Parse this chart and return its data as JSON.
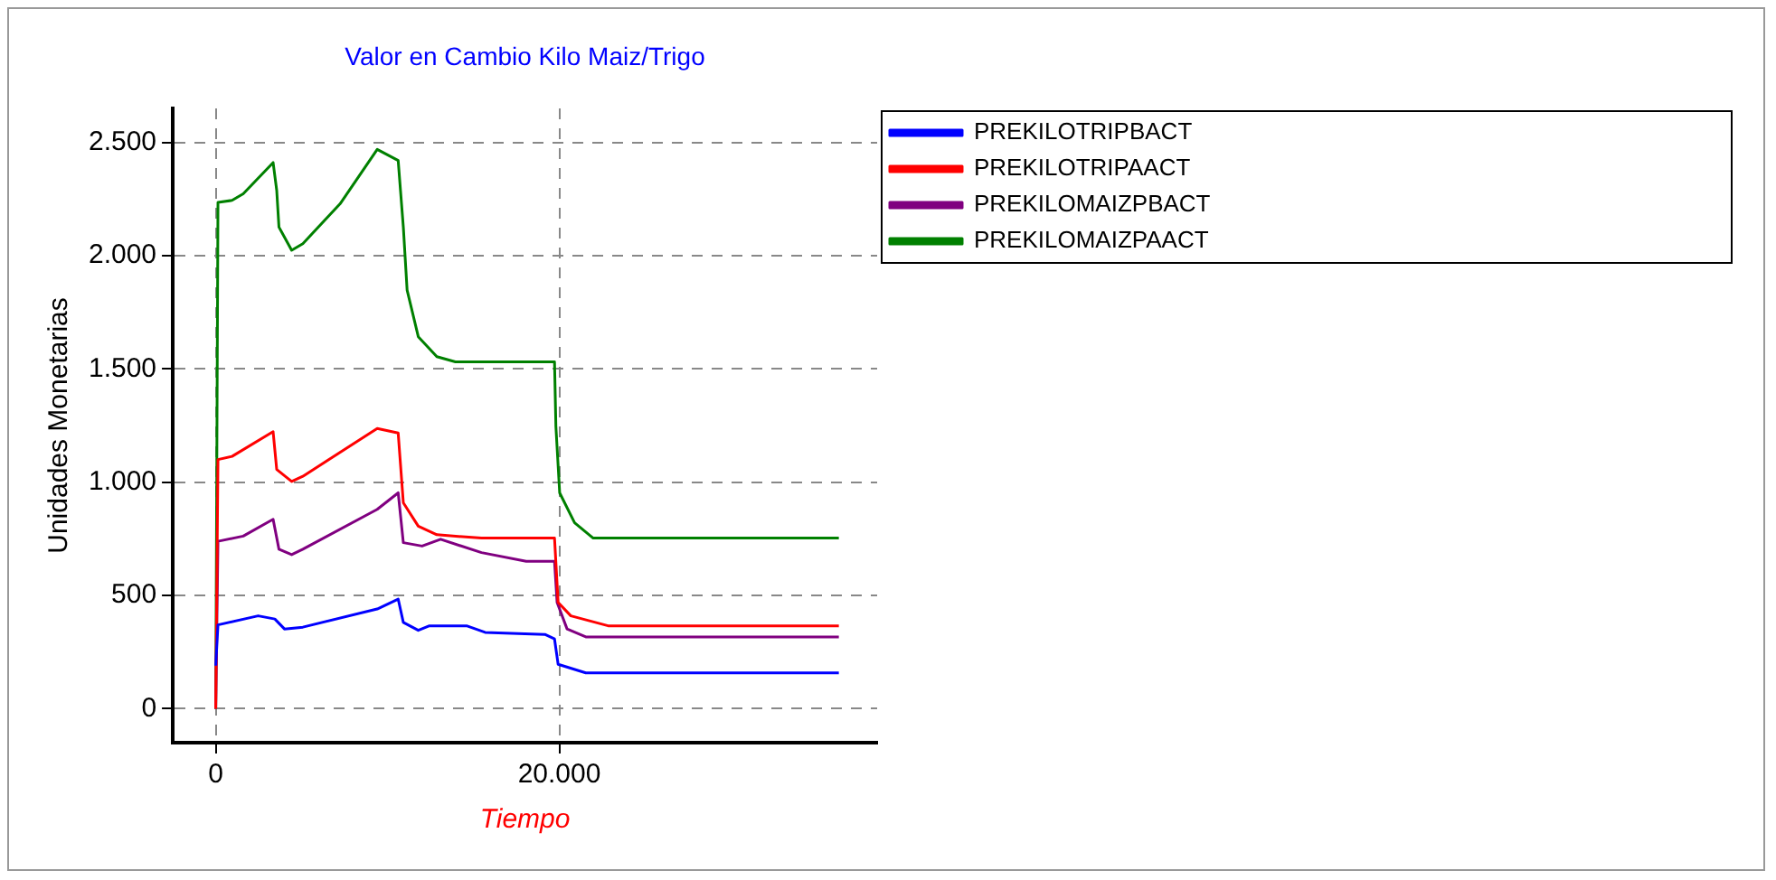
{
  "chart_data": {
    "type": "line",
    "title": "Valor en Cambio Kilo Maiz/Trigo",
    "xlabel": "Tiempo",
    "ylabel": "Unidades Monetarias",
    "xlim": [
      -2500,
      38500
    ],
    "ylim": [
      -150,
      2650
    ],
    "xticks": [
      0,
      {
        "value": 20000,
        "label": "20.000"
      }
    ],
    "yticks": [
      0,
      500,
      {
        "value": 1000,
        "label": "1.000"
      },
      {
        "value": 1500,
        "label": "1.500"
      },
      {
        "value": 2000,
        "label": "2.000"
      },
      {
        "value": 2500,
        "label": "2.500"
      }
    ],
    "grid": true,
    "legend": "top right",
    "marker": "none",
    "line_style": "solid",
    "series": [
      {
        "name": "PREKILOTRIPBACT",
        "color": "#0000ff",
        "x": [
          0,
          130,
          2470,
          3440,
          4000,
          5070,
          9400,
          10620,
          10920,
          11790,
          12440,
          14600,
          15680,
          19160,
          19720,
          19930,
          21540,
          36270
        ],
        "values": [
          190,
          370,
          410,
          396,
          352,
          360,
          440,
          484,
          381,
          346,
          366,
          366,
          337,
          328,
          308,
          196,
          158,
          158
        ]
      },
      {
        "name": "PREKILOTRIPAACT",
        "color": "#ff0000",
        "x": [
          0,
          130,
          950,
          3340,
          3550,
          4420,
          5070,
          9400,
          10620,
          10920,
          11790,
          12870,
          15470,
          19720,
          19930,
          20670,
          22840,
          36270
        ],
        "values": [
          0,
          1100,
          1114,
          1223,
          1056,
          1003,
          1026,
          1237,
          1217,
          909,
          806,
          768,
          753,
          753,
          469,
          410,
          366,
          366
        ]
      },
      {
        "name": "PREKILOMAIZPBACT",
        "color": "#800080",
        "x": [
          0,
          130,
          1600,
          3340,
          3680,
          4420,
          5070,
          9400,
          10620,
          10920,
          12010,
          13090,
          15470,
          18070,
          19720,
          19870,
          20450,
          21540,
          36270
        ],
        "values": [
          0,
          739,
          762,
          836,
          704,
          680,
          704,
          880,
          953,
          733,
          718,
          748,
          689,
          651,
          651,
          469,
          352,
          317,
          317
        ]
      },
      {
        "name": "PREKILOMAIZPAACT",
        "color": "#008000",
        "x": [
          0,
          130,
          950,
          1600,
          3340,
          3550,
          3680,
          4420,
          5070,
          7240,
          9400,
          10620,
          10920,
          11140,
          11790,
          12870,
          13950,
          19720,
          19800,
          20020,
          20890,
          21970,
          36270
        ],
        "values": [
          0,
          2235,
          2244,
          2273,
          2411,
          2288,
          2126,
          2024,
          2053,
          2229,
          2469,
          2420,
          2126,
          1848,
          1642,
          1554,
          1531,
          1531,
          1246,
          953,
          821,
          753,
          753
        ]
      }
    ]
  }
}
